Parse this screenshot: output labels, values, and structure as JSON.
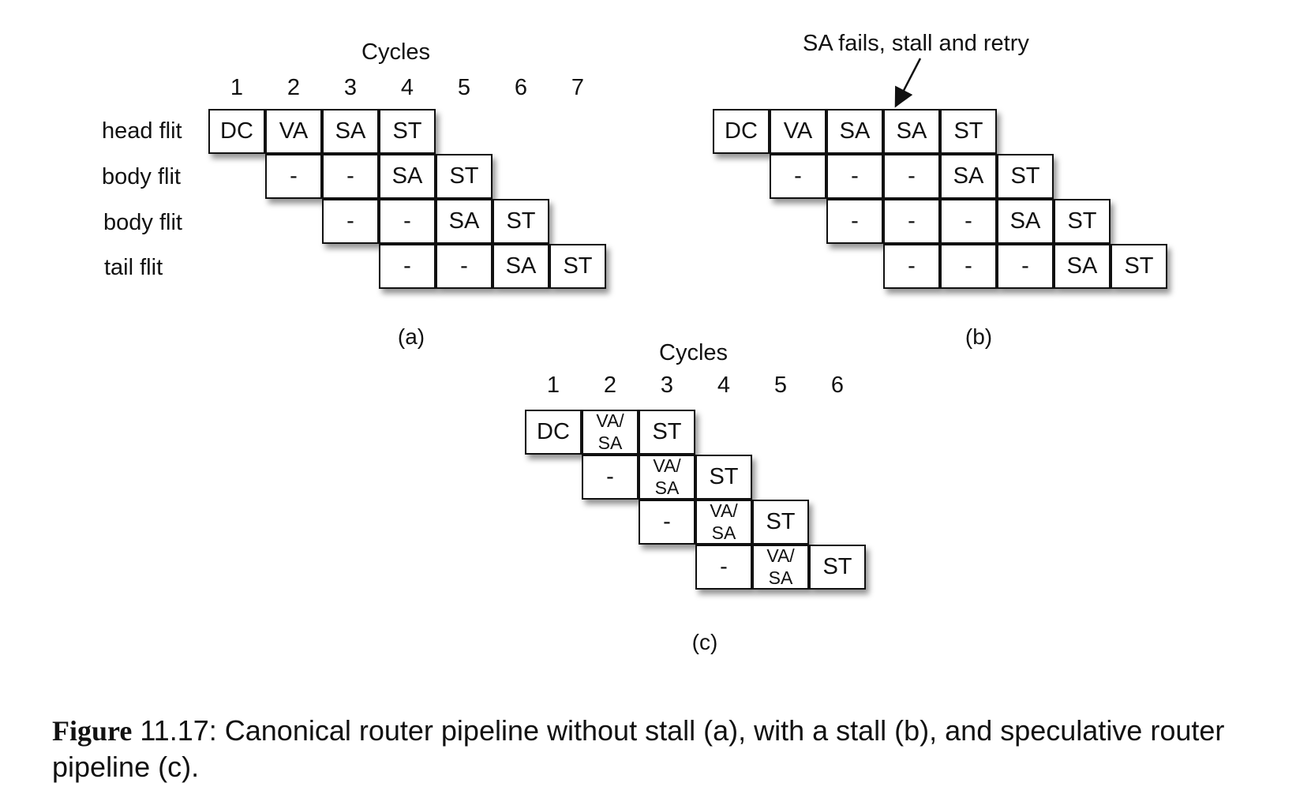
{
  "diagram_a": {
    "title": "Cycles",
    "cycles": [
      "1",
      "2",
      "3",
      "4",
      "5",
      "6",
      "7"
    ],
    "rows": [
      {
        "label": "head flit",
        "start": 0,
        "cells": [
          "DC",
          "VA",
          "SA",
          "ST"
        ]
      },
      {
        "label": "body flit",
        "start": 1,
        "cells": [
          "-",
          "-",
          "SA",
          "ST"
        ]
      },
      {
        "label": "body flit",
        "start": 2,
        "cells": [
          "-",
          "-",
          "SA",
          "ST"
        ]
      },
      {
        "label": "tail flit",
        "start": 3,
        "cells": [
          "-",
          "-",
          "SA",
          "ST"
        ]
      }
    ],
    "sublabel": "(a)"
  },
  "diagram_b": {
    "annotation": "SA fails, stall and retry",
    "rows": [
      {
        "start": 0,
        "cells": [
          "DC",
          "VA",
          "SA",
          "SA",
          "ST"
        ]
      },
      {
        "start": 1,
        "cells": [
          "-",
          "-",
          "-",
          "SA",
          "ST"
        ]
      },
      {
        "start": 2,
        "cells": [
          "-",
          "-",
          "-",
          "SA",
          "ST"
        ]
      },
      {
        "start": 3,
        "cells": [
          "-",
          "-",
          "-",
          "SA",
          "ST"
        ]
      }
    ],
    "sublabel": "(b)"
  },
  "diagram_c": {
    "title": "Cycles",
    "cycles": [
      "1",
      "2",
      "3",
      "4",
      "5",
      "6"
    ],
    "rows": [
      {
        "start": 0,
        "cells": [
          "DC",
          "VA/\nSA",
          "ST"
        ]
      },
      {
        "start": 1,
        "cells": [
          "-",
          "VA/\nSA",
          "ST"
        ]
      },
      {
        "start": 2,
        "cells": [
          "-",
          "VA/\nSA",
          "ST"
        ]
      },
      {
        "start": 3,
        "cells": [
          "-",
          "VA/\nSA",
          "ST"
        ]
      }
    ],
    "sublabel": "(c)"
  },
  "caption": {
    "prefix": "Figure",
    "text": " 11.17: Canonical router pipeline without stall (a), with a stall (b), and speculative router pipeline (c)."
  }
}
